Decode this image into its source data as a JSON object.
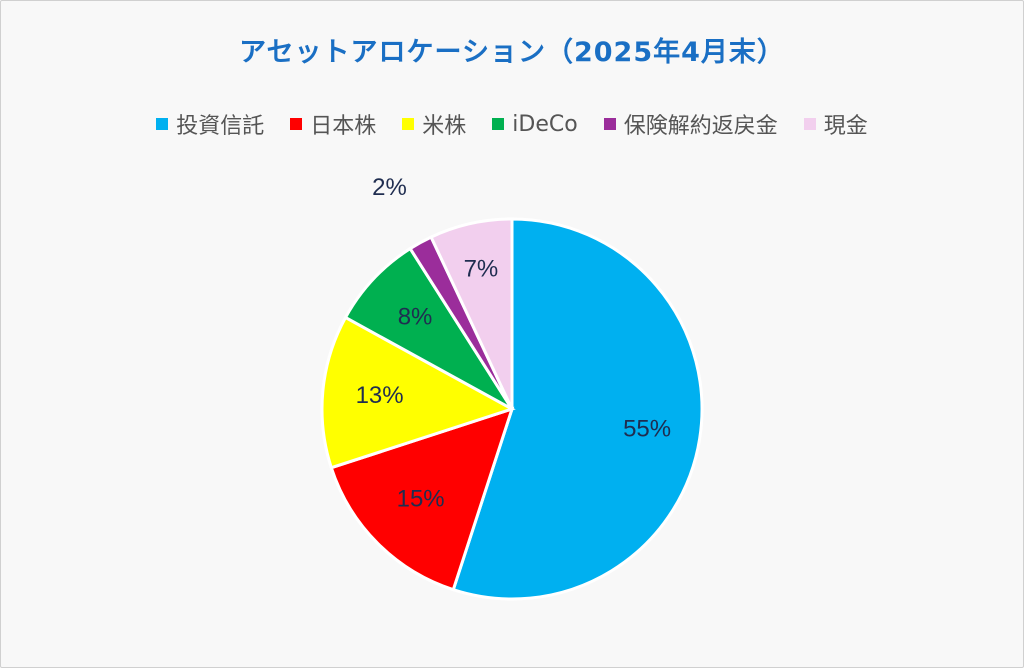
{
  "chart_data": {
    "type": "pie",
    "title": "アセットアロケーション（2025年4月末）",
    "categories": [
      "投資信託",
      "日本株",
      "米株",
      "iDeCo",
      "保険解約返戻金",
      "現金"
    ],
    "values": [
      55,
      15,
      13,
      8,
      2,
      7
    ],
    "labels": [
      "55%",
      "15%",
      "13%",
      "8%",
      "2%",
      "7%"
    ],
    "colors": [
      "#00b0f0",
      "#ff0000",
      "#ffff00",
      "#00b050",
      "#9b2d9b",
      "#f2cfee"
    ],
    "legend": "top"
  }
}
